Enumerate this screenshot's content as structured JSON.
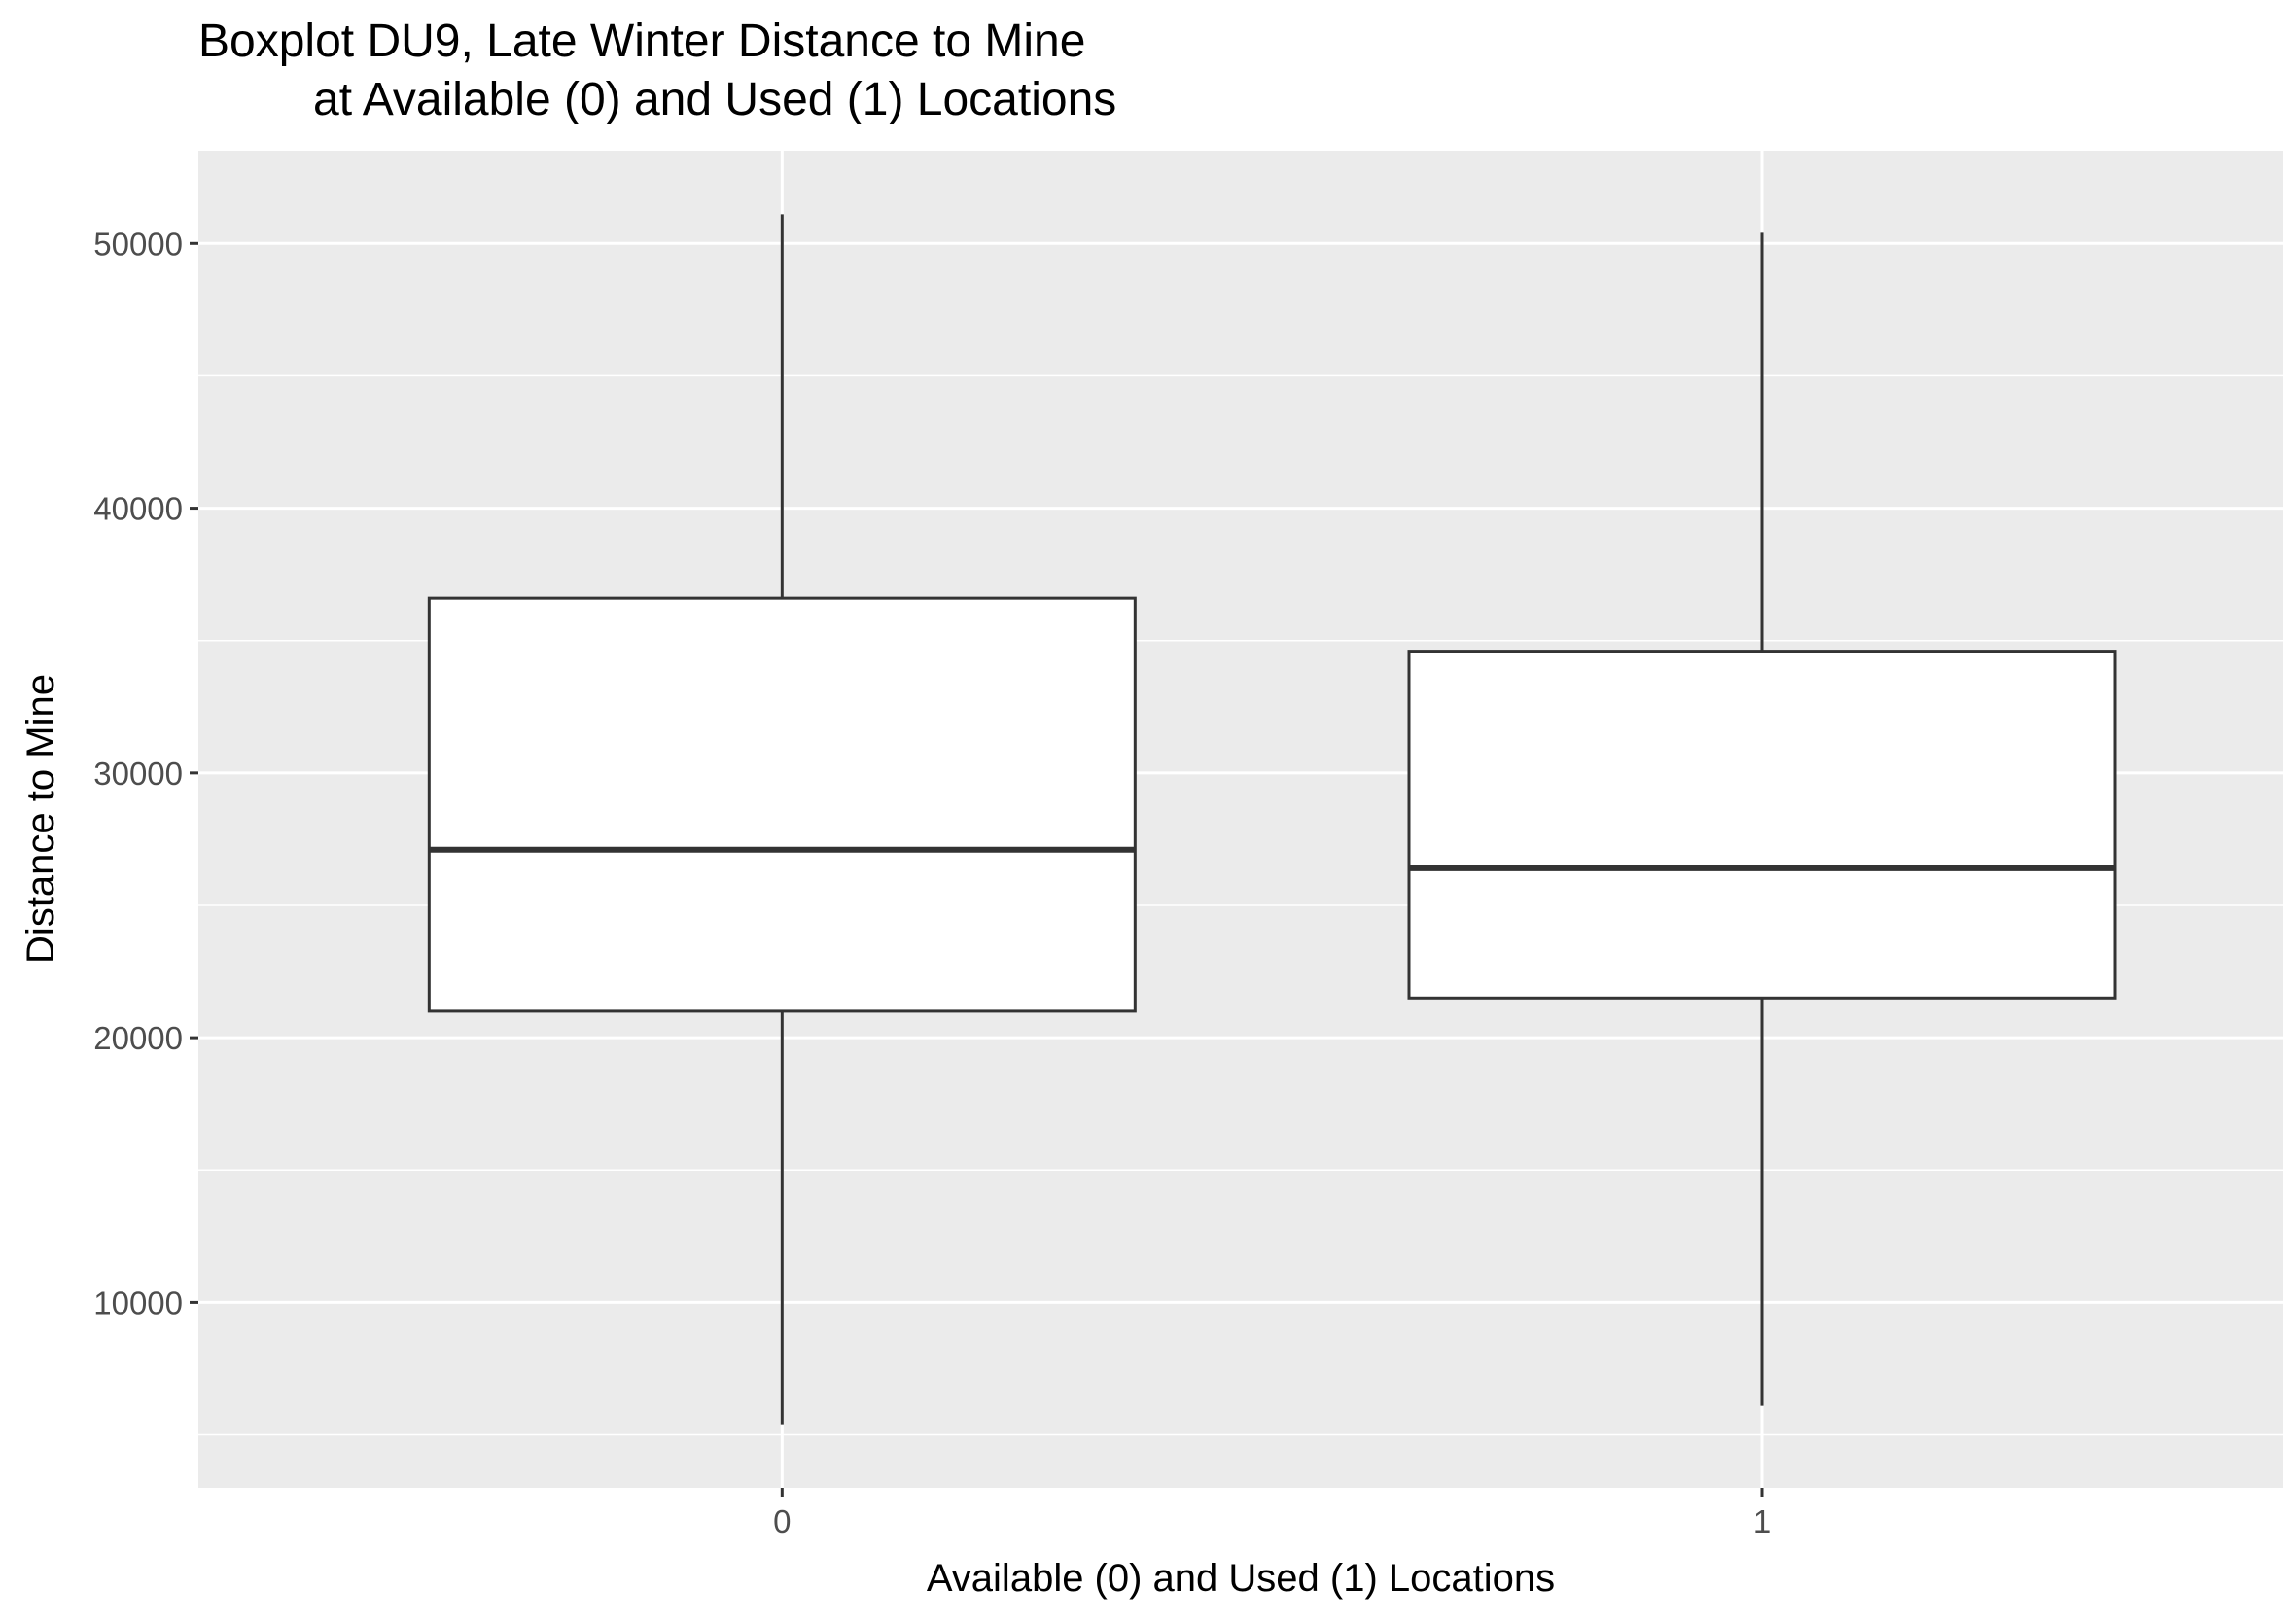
{
  "chart_data": {
    "type": "boxplot",
    "title_line1": "Boxplot DU9, Late Winter Distance to Mine",
    "title_line2": "at Available (0) and Used (1) Locations",
    "xlabel": "Available (0) and Used (1) Locations",
    "ylabel": "Distance to Mine",
    "categories": [
      "0",
      "1"
    ],
    "boxes": [
      {
        "category": "0",
        "whisker_low": 5400,
        "q1": 21000,
        "median": 27100,
        "q3": 36600,
        "whisker_high": 51100
      },
      {
        "category": "1",
        "whisker_low": 6100,
        "q1": 21500,
        "median": 26400,
        "q3": 34600,
        "whisker_high": 50400
      }
    ],
    "y_ticks": [
      10000,
      20000,
      30000,
      40000,
      50000
    ],
    "y_tick_labels": [
      "10000",
      "20000",
      "30000",
      "40000",
      "50000"
    ],
    "ylim": [
      3000,
      53500
    ],
    "grid": true,
    "colors": {
      "panel_background": "#ebebeb",
      "grid_line": "#ffffff",
      "box_fill": "#ffffff",
      "box_stroke": "#333333",
      "tick_label": "#4d4d4d",
      "axis_title": "#000000",
      "tick_mark": "#333333"
    }
  }
}
